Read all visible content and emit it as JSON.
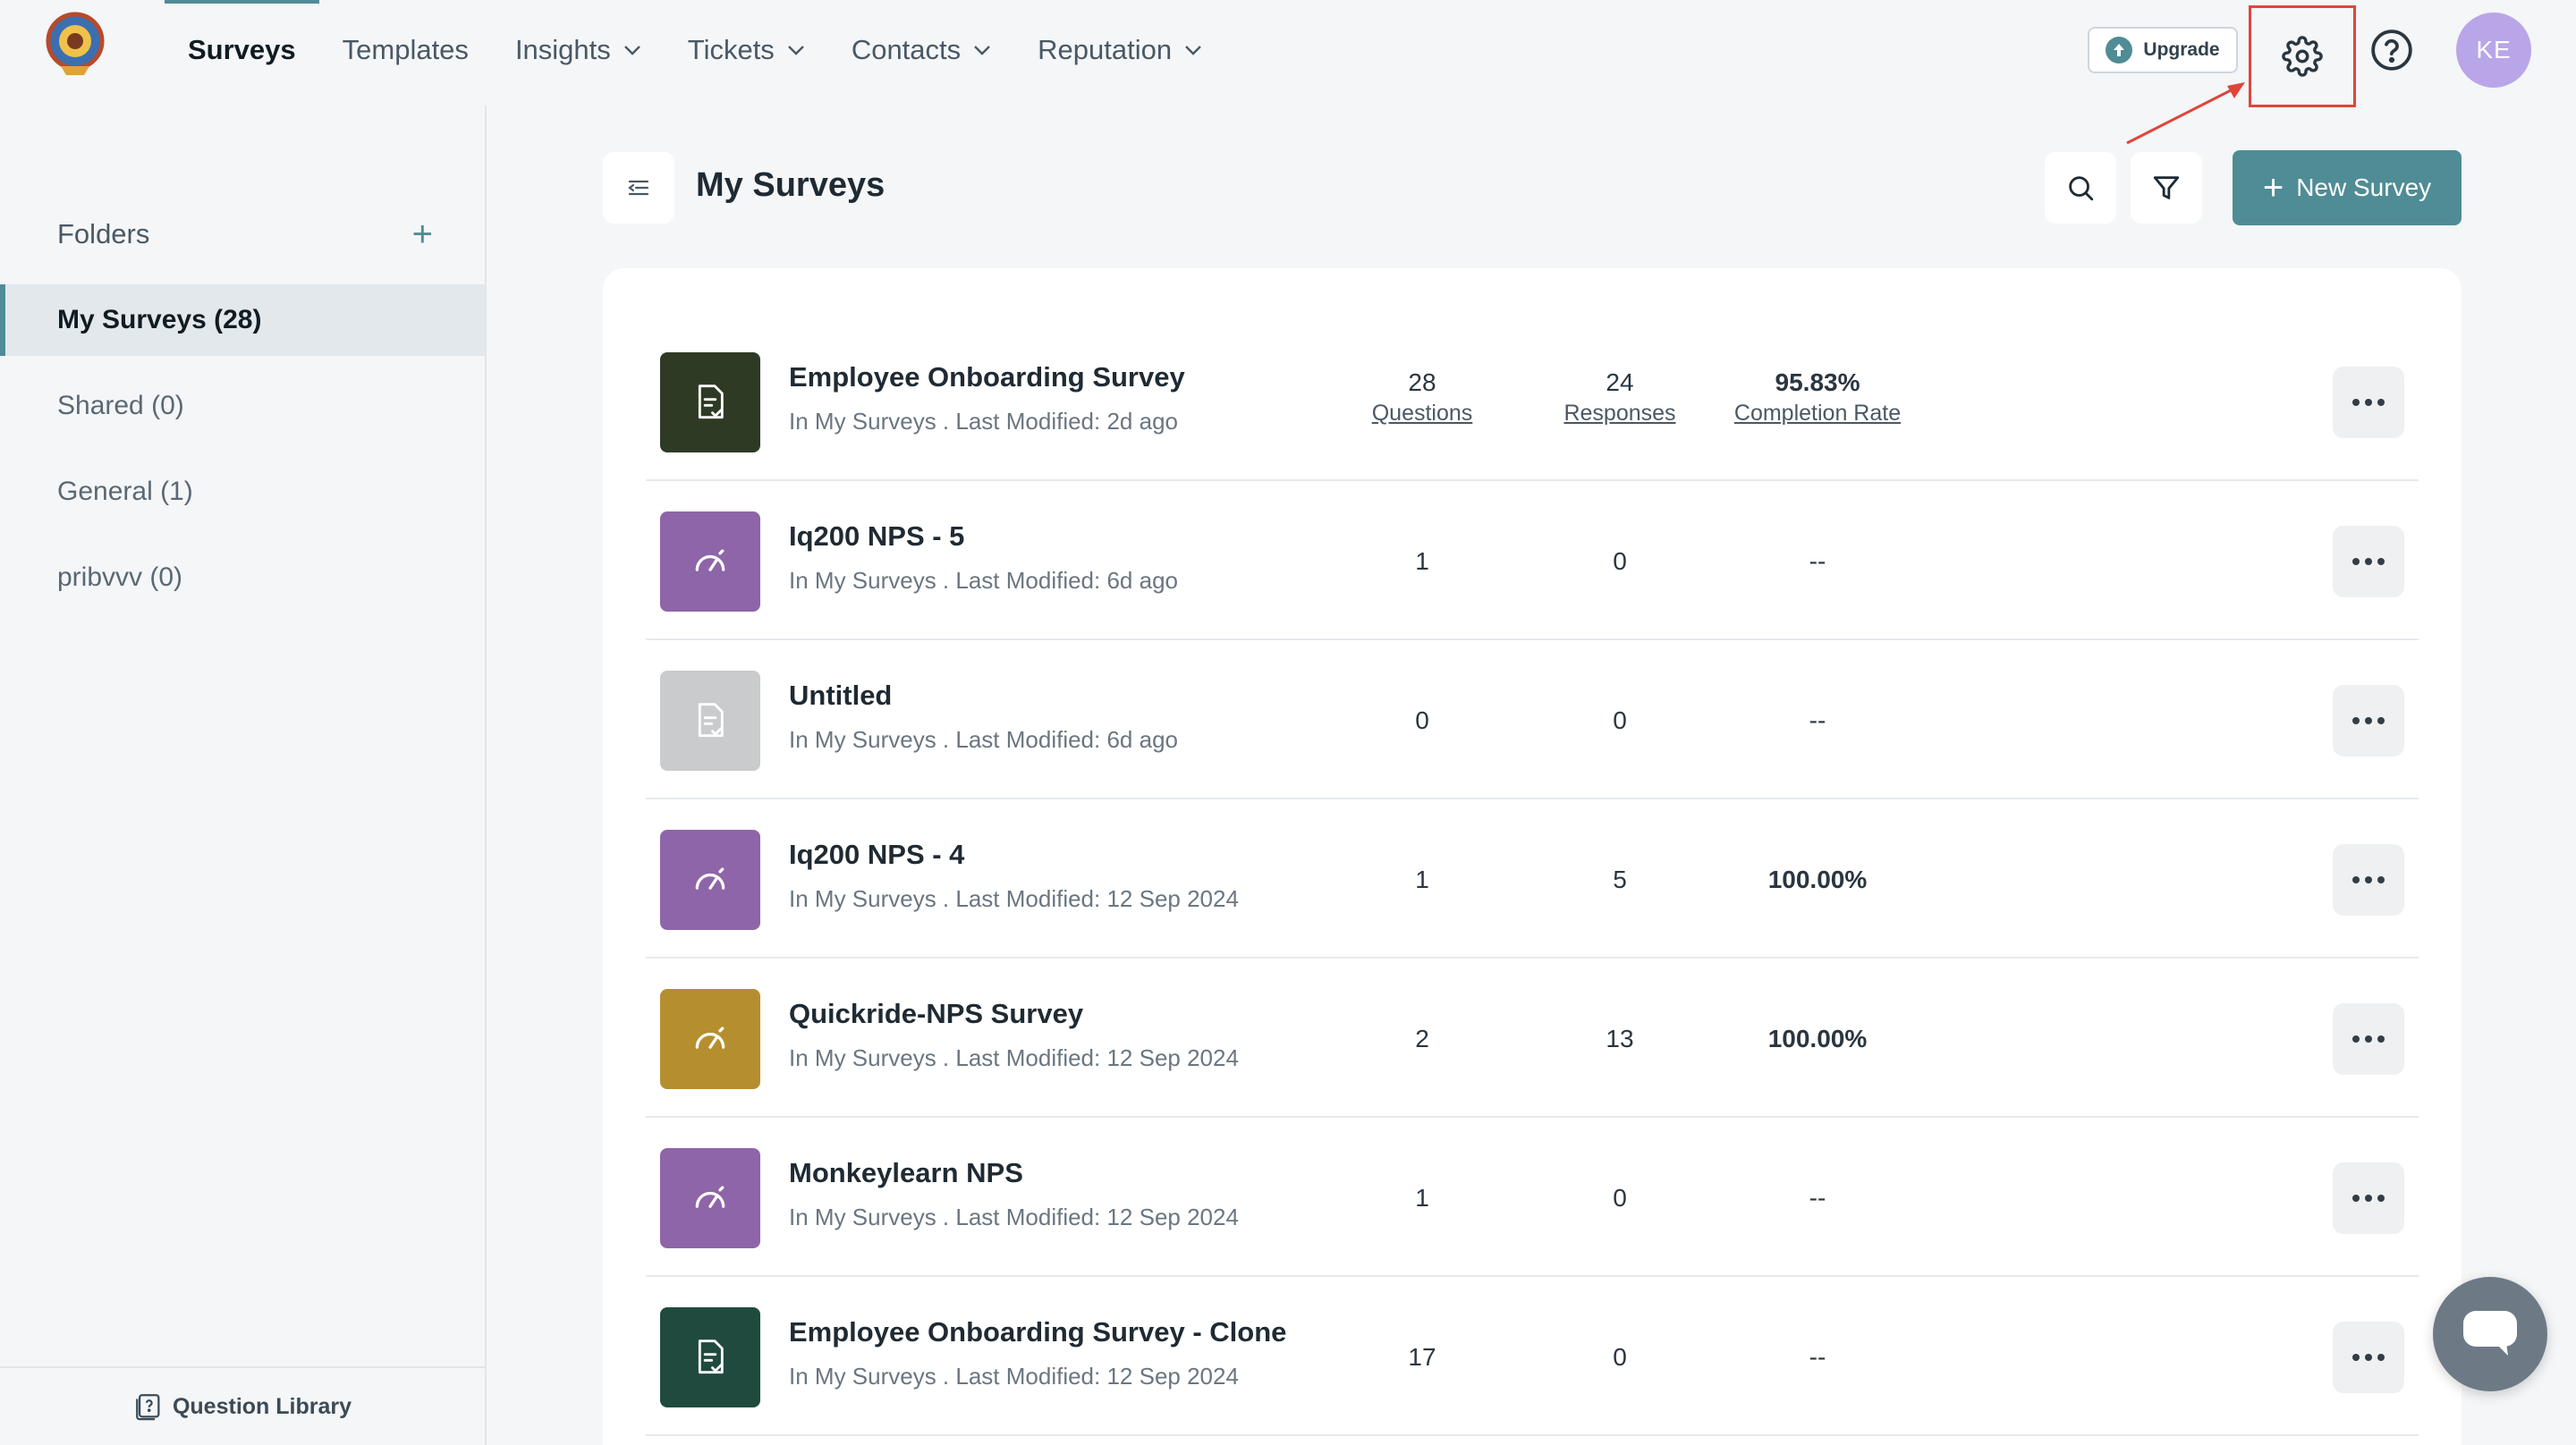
{
  "nav": {
    "items": [
      {
        "label": "Surveys",
        "active": true,
        "dropdown": false
      },
      {
        "label": "Templates",
        "active": false,
        "dropdown": false
      },
      {
        "label": "Insights",
        "active": false,
        "dropdown": true
      },
      {
        "label": "Tickets",
        "active": false,
        "dropdown": true
      },
      {
        "label": "Contacts",
        "active": false,
        "dropdown": true
      },
      {
        "label": "Reputation",
        "active": false,
        "dropdown": true
      }
    ],
    "upgrade_label": "Upgrade",
    "avatar_initials": "KE",
    "accent_color": "#4f8c95"
  },
  "sidebar": {
    "folders_label": "Folders",
    "items": [
      {
        "label": "My Surveys (28)",
        "active": true
      },
      {
        "label": "Shared (0)",
        "active": false
      },
      {
        "label": "General (1)",
        "active": false
      },
      {
        "label": "pribvvv (0)",
        "active": false
      }
    ],
    "question_library_label": "Question Library"
  },
  "main": {
    "title": "My Surveys",
    "new_survey_label": "New Survey"
  },
  "surveys": [
    {
      "title": "Employee Onboarding Survey",
      "subtitle": "In My Surveys . Last Modified: 2d ago",
      "questions": "28",
      "responses": "24",
      "completion": "95.83%",
      "show_labels": true,
      "thumb_color": "#2f3a25",
      "icon": "document-check-icon"
    },
    {
      "title": "Iq200 NPS - 5",
      "subtitle": "In My Surveys . Last Modified: 6d ago",
      "questions": "1",
      "responses": "0",
      "completion": "--",
      "show_labels": false,
      "thumb_color": "#8e65a8",
      "icon": "gauge-icon"
    },
    {
      "title": "Untitled",
      "subtitle": "In My Surveys . Last Modified: 6d ago",
      "questions": "0",
      "responses": "0",
      "completion": "--",
      "show_labels": false,
      "thumb_color": "#c9cbcd",
      "icon": "document-check-icon"
    },
    {
      "title": "Iq200 NPS - 4",
      "subtitle": "In My Surveys . Last Modified: 12 Sep 2024",
      "questions": "1",
      "responses": "5",
      "completion": "100.00%",
      "show_labels": false,
      "thumb_color": "#8e65a8",
      "icon": "gauge-icon"
    },
    {
      "title": "Quickride-NPS Survey",
      "subtitle": "In My Surveys . Last Modified: 12 Sep 2024",
      "questions": "2",
      "responses": "13",
      "completion": "100.00%",
      "show_labels": false,
      "thumb_color": "#b58f2f",
      "icon": "gauge-icon"
    },
    {
      "title": "Monkeylearn NPS",
      "subtitle": "In My Surveys . Last Modified: 12 Sep 2024",
      "questions": "1",
      "responses": "0",
      "completion": "--",
      "show_labels": false,
      "thumb_color": "#8e65a8",
      "icon": "gauge-icon"
    },
    {
      "title": "Employee Onboarding Survey - Clone",
      "subtitle": "In My Surveys . Last Modified: 12 Sep 2024",
      "questions": "17",
      "responses": "0",
      "completion": "--",
      "show_labels": false,
      "thumb_color": "#1f4a3d",
      "icon": "document-check-icon"
    }
  ],
  "stat_labels": {
    "questions": "Questions",
    "responses": "Responses",
    "completion": "Completion Rate"
  }
}
